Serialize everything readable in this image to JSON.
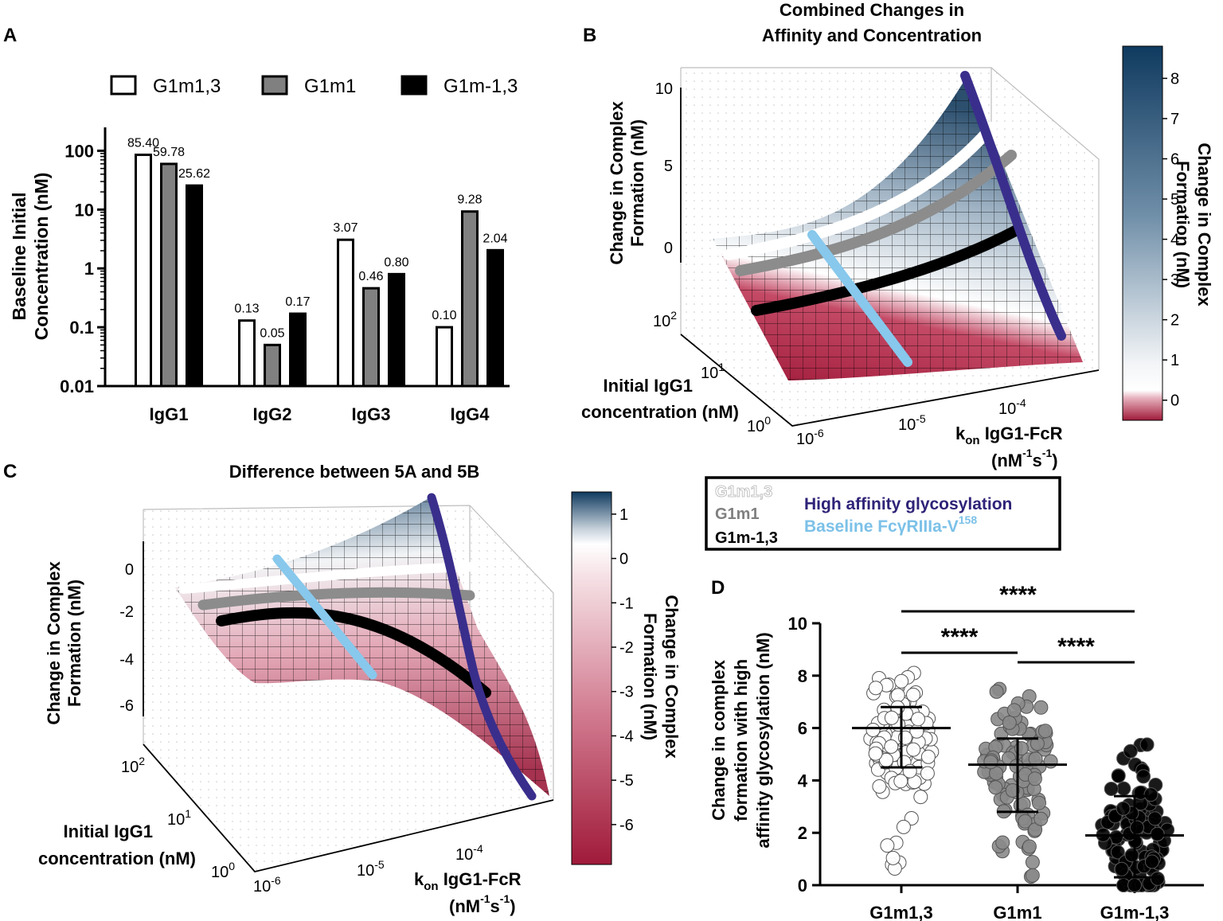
{
  "panels": {
    "a": "A",
    "b": "B",
    "c": "C",
    "d": "D"
  },
  "chart_data": [
    {
      "panel": "A",
      "type": "bar",
      "scale": "log",
      "ylabel": "Baseline Initial Concentration (nM)",
      "ylabel_lines": [
        "Baseline Initial",
        "Concentration (nM)"
      ],
      "yticks": [
        0.01,
        0.1,
        1,
        10,
        100
      ],
      "ytick_labels": [
        "0.01",
        "0.1",
        "1",
        "10",
        "100"
      ],
      "ylim": [
        0.01,
        250
      ],
      "categories": [
        "IgG1",
        "IgG2",
        "IgG3",
        "IgG4"
      ],
      "series": [
        {
          "name": "G1m1,3",
          "fill": "#ffffff",
          "values": [
            85.4,
            0.13,
            3.07,
            0.1
          ],
          "labels": [
            "85.40",
            "0.13",
            "3.07",
            "0.10"
          ]
        },
        {
          "name": "G1m1",
          "fill": "#808080",
          "values": [
            59.78,
            0.05,
            0.46,
            9.28
          ],
          "labels": [
            "59.78",
            "0.05",
            "0.46",
            "9.28"
          ]
        },
        {
          "name": "G1m-1,3",
          "fill": "#000000",
          "values": [
            25.62,
            0.17,
            0.8,
            2.04
          ],
          "labels": [
            "25.62",
            "0.17",
            "0.80",
            "2.04"
          ]
        }
      ]
    },
    {
      "panel": "B",
      "type": "surface",
      "title_lines": [
        "Combined Changes in",
        "Affinity and Concentration"
      ],
      "zlabel_lines": [
        "Change in Complex",
        "Formation (nM)"
      ],
      "zticks": [
        0,
        5,
        10
      ],
      "zlim": [
        -1,
        10
      ],
      "ylabel_lines": [
        "Initial IgG1",
        "concentration (nM)"
      ],
      "yticks": [
        "10^0",
        "10^1",
        "10^2"
      ],
      "xticks": [
        "10^-6",
        "10^-5",
        "10^-4"
      ],
      "xlabel": {
        "k": "k",
        "sub": "on",
        "rest": " IgG1-FcR",
        "unit": "(nM",
        "sup": "-1",
        "unit2": "s",
        "sup2": "-1",
        "close": ")"
      },
      "colorbar": {
        "label_lines": [
          "Change in Complex",
          "Formation (nM)"
        ],
        "ticks": [
          8,
          7,
          6,
          5,
          4,
          3,
          2,
          1,
          0
        ],
        "range": [
          -0.5,
          8.8
        ]
      },
      "lines": [
        {
          "name": "G1m1,3",
          "color": "#ffffff"
        },
        {
          "name": "G1m1",
          "color": "#8c8c8c"
        },
        {
          "name": "G1m-1,3",
          "color": "#000000"
        },
        {
          "name": "High affinity glycosylation",
          "color": "#3a2e8c"
        },
        {
          "name": "Baseline FcγRIIIa-V158",
          "color": "#87c8ec"
        }
      ]
    },
    {
      "panel": "C",
      "type": "surface",
      "title": "Difference between 5A and 5B",
      "zlabel_lines": [
        "Change in Complex",
        "Formation (nM)"
      ],
      "zticks": [
        0,
        -2,
        -4,
        -6
      ],
      "zlim": [
        -7,
        1
      ],
      "ylabel_lines": [
        "Initial IgG1",
        "concentration (nM)"
      ],
      "yticks": [
        "10^0",
        "10^1",
        "10^2"
      ],
      "xticks": [
        "10^-6",
        "10^-5",
        "10^-4"
      ],
      "colorbar": {
        "label_lines": [
          "Change in Complex",
          "Formation (nM)"
        ],
        "ticks": [
          1,
          0,
          -1,
          -2,
          -3,
          -4,
          -5,
          -6
        ],
        "range": [
          -6.9,
          1.5
        ]
      }
    },
    {
      "panel": "D",
      "type": "scatter",
      "ylabel_lines": [
        "Change in complex",
        "formation with high",
        "affinity glycosylation (nM)"
      ],
      "ylim": [
        0,
        10
      ],
      "yticks": [
        0,
        2,
        4,
        6,
        8,
        10
      ],
      "categories": [
        "G1m1,3",
        "G1m1",
        "G1m-1,3"
      ],
      "groups": [
        {
          "name": "G1m1,3",
          "fill": "#ffffff",
          "mean": 6.0,
          "sd_low": 4.5,
          "sd_high": 6.8,
          "min": 0.5,
          "max": 8.1
        },
        {
          "name": "G1m1",
          "fill": "#8a8a8a",
          "mean": 4.6,
          "sd_low": 2.8,
          "sd_high": 5.6,
          "min": 0.1,
          "max": 7.7
        },
        {
          "name": "G1m-1,3",
          "fill": "#000000",
          "mean": 1.9,
          "sd_low": 0.3,
          "sd_high": 3.4,
          "min": 0.0,
          "max": 5.8
        }
      ],
      "significance": [
        {
          "from": "G1m1,3",
          "to": "G1m-1,3",
          "label": "****"
        },
        {
          "from": "G1m1,3",
          "to": "G1m1",
          "label": "****"
        },
        {
          "from": "G1m1",
          "to": "G1m-1,3",
          "label": "****"
        }
      ]
    }
  ],
  "legend_box": {
    "g13": "G1m1,3",
    "g1": "G1m1",
    "gneg": "G1m-1,3",
    "high": "High affinity glycosylation",
    "baseline_main": "Baseline FcγRIIIa-V",
    "baseline_sup": "158"
  },
  "colors": {
    "navy": "#0f3a5f",
    "red": "#a01a3a",
    "purple": "#3a2e8c",
    "lightblue": "#87c8ec",
    "grey": "#8c8c8c"
  }
}
